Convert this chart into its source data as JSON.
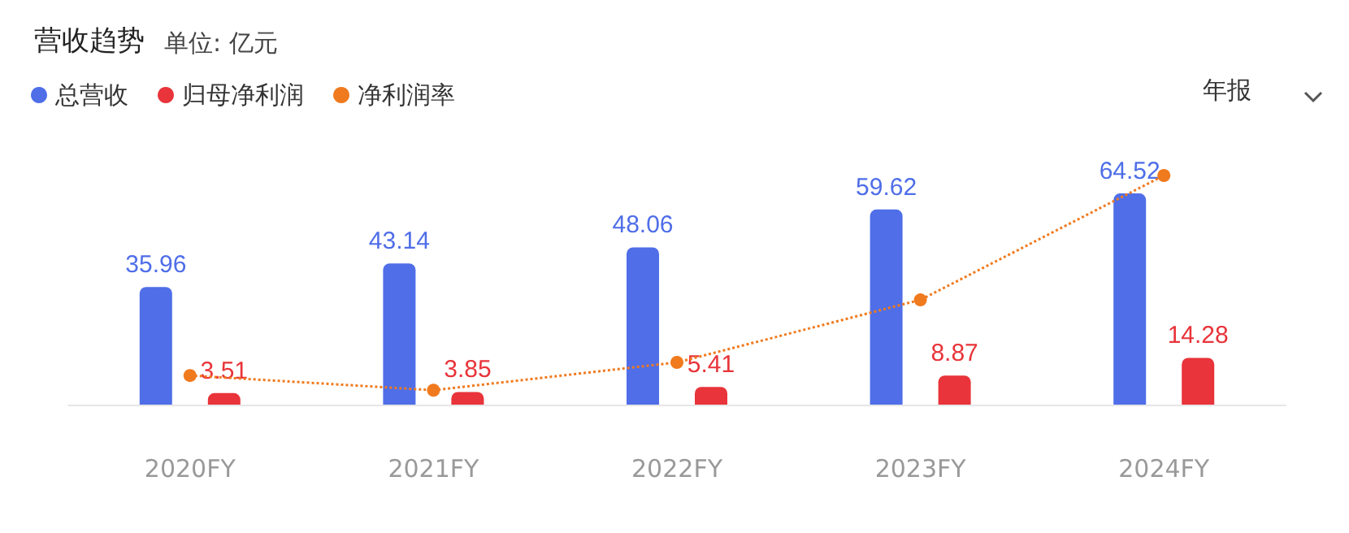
{
  "chart_data": {
    "type": "bar",
    "title": "营收趋势",
    "subtitle": "单位: 亿元",
    "categories": [
      "2020FY",
      "2021FY",
      "2022FY",
      "2023FY",
      "2024FY"
    ],
    "series": [
      {
        "name": "总营收",
        "color": "#4f6ee8",
        "values": [
          35.96,
          43.14,
          48.06,
          59.62,
          64.52
        ],
        "value_labels": [
          "35.96",
          "43.14",
          "48.06",
          "59.62",
          "64.52"
        ]
      },
      {
        "name": "归母净利润",
        "color": "#e8343a",
        "values": [
          3.51,
          3.85,
          5.41,
          8.87,
          14.28
        ],
        "value_labels": [
          "3.51",
          "3.85",
          "5.41",
          "8.87",
          "14.28"
        ]
      },
      {
        "name": "净利润率",
        "type": "line",
        "color": "#f07a1e",
        "values": [
          8.9,
          4.4,
          12.9,
          32,
          70
        ],
        "marker": "circle",
        "line_style": "dotted"
      }
    ],
    "tick_labels": "x",
    "legend": "top left",
    "grid": false,
    "annotations": [
      "年报"
    ]
  }
}
